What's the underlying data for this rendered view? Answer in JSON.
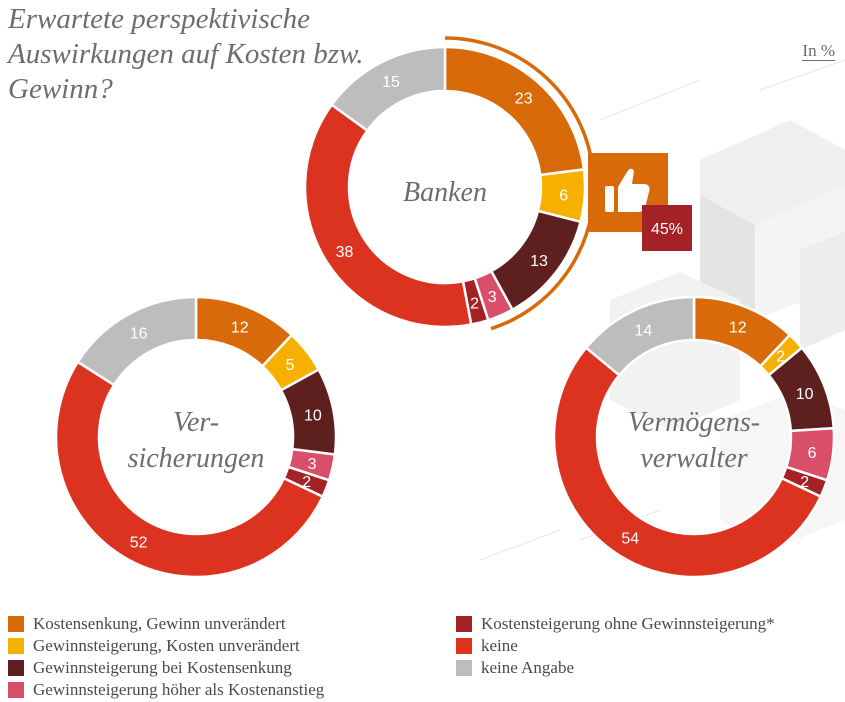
{
  "title": "Erwartete perspektivische Auswirkungen auf Kosten bzw. Gewinn?",
  "unit": "In %",
  "callout": "45%",
  "colors": {
    "Kostensenkung, Gewinn unverändert": "#d86a0a",
    "Gewinnsteigerung, Kosten unverändert": "#f5b000",
    "Gewinnsteigerung bei Kostensenkung": "#5e1f1f",
    "Gewinnsteigerung höher als Kostenanstieg": "#d94f6a",
    "Kostensteigerung ohne Gewinnsteigerung*": "#a42226",
    "keine": "#dc3320",
    "keine Angabe": "#bdbdbd"
  },
  "legend": {
    "left": [
      "Kostensenkung, Gewinn unverändert",
      "Gewinnsteigerung, Kosten unverändert",
      "Gewinnsteigerung bei Kostensenkung",
      "Gewinnsteigerung höher als Kostenanstieg"
    ],
    "right": [
      "Kostensteigerung ohne Gewinnsteigerung*",
      "keine",
      "keine Angabe"
    ]
  },
  "chart_data": [
    {
      "type": "pie",
      "title": "Banken",
      "categories": [
        "Kostensenkung, Gewinn unverändert",
        "Gewinnsteigerung, Kosten unverändert",
        "Gewinnsteigerung bei Kostensenkung",
        "Gewinnsteigerung höher als Kostenanstieg",
        "Kostensteigerung ohne Gewinnsteigerung*",
        "keine",
        "keine Angabe"
      ],
      "values": [
        23,
        6,
        13,
        3,
        2,
        38,
        15
      ]
    },
    {
      "type": "pie",
      "title": "Ver-\nsicherungen",
      "categories": [
        "Kostensenkung, Gewinn unverändert",
        "Gewinnsteigerung, Kosten unverändert",
        "Gewinnsteigerung bei Kostensenkung",
        "Gewinnsteigerung höher als Kostenanstieg",
        "Kostensteigerung ohne Gewinnsteigerung*",
        "keine",
        "keine Angabe"
      ],
      "values": [
        12,
        5,
        10,
        3,
        2,
        52,
        16
      ]
    },
    {
      "type": "pie",
      "title": "Vermögens-\nverwalter",
      "categories": [
        "Kostensenkung, Gewinn unverändert",
        "Gewinnsteigerung, Kosten unverändert",
        "Gewinnsteigerung bei Kostensenkung",
        "Gewinnsteigerung höher als Kostenanstieg",
        "Kostensteigerung ohne Gewinnsteigerung*",
        "keine",
        "keine Angabe"
      ],
      "values": [
        12,
        2,
        10,
        6,
        2,
        54,
        14
      ]
    }
  ]
}
